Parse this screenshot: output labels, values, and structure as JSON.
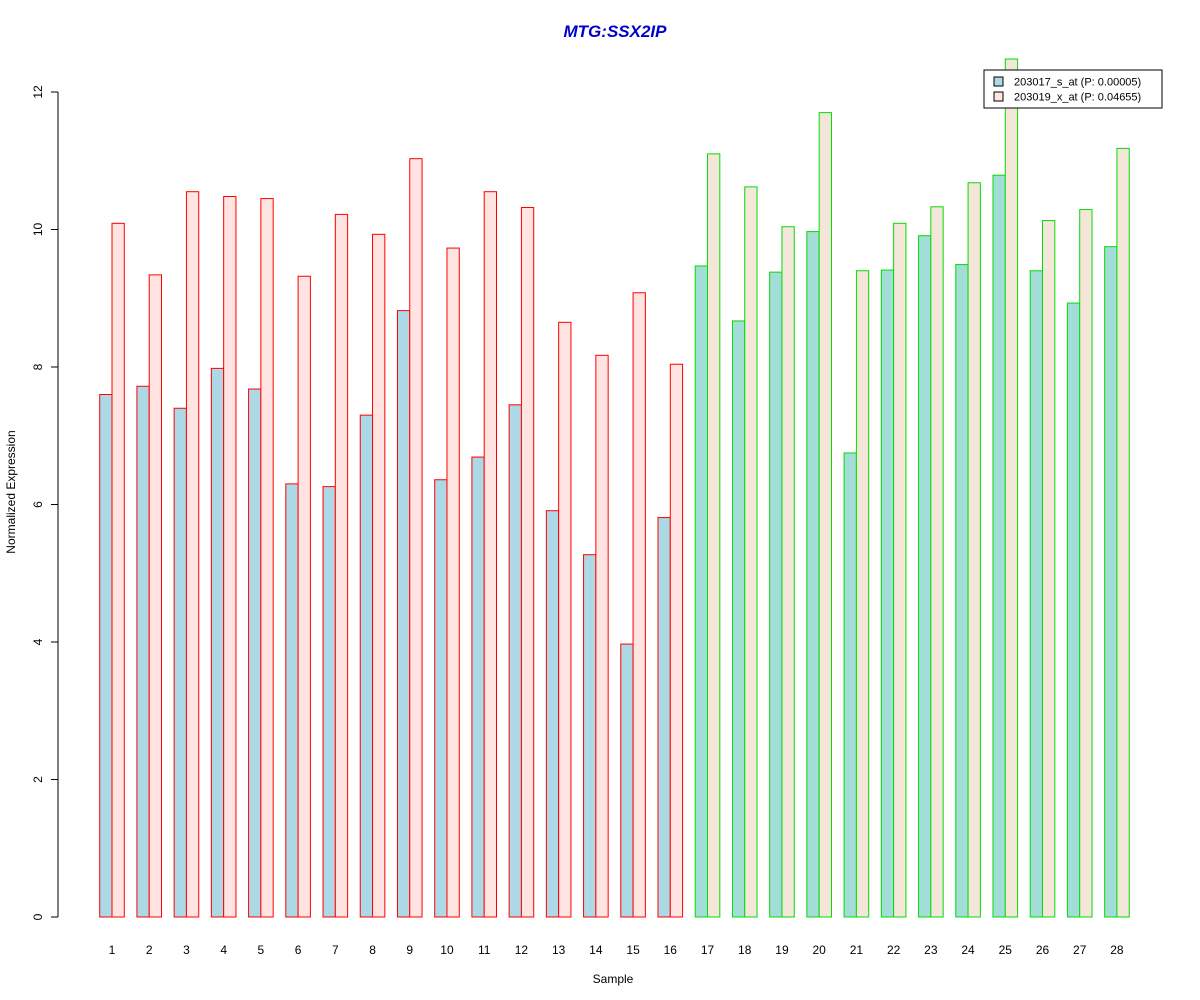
{
  "chart_data": {
    "type": "bar",
    "title": "MTG:SSX2IP",
    "xlabel": "Sample",
    "ylabel": "Normalized Expression",
    "ylim": [
      0,
      12
    ],
    "yticks": [
      0,
      2,
      4,
      6,
      8,
      10,
      12
    ],
    "grid": false,
    "legend_position": "top-right",
    "categories": [
      "1",
      "2",
      "3",
      "4",
      "5",
      "6",
      "7",
      "8",
      "9",
      "10",
      "11",
      "12",
      "13",
      "14",
      "15",
      "16",
      "17",
      "18",
      "19",
      "20",
      "21",
      "22",
      "23",
      "24",
      "25",
      "26",
      "27",
      "28"
    ],
    "groups": [
      {
        "samples": [
          1,
          16
        ],
        "border_color": "#FF0000",
        "fills": [
          "#ADD8E6",
          "#FFE4E1"
        ]
      },
      {
        "samples": [
          17,
          28
        ],
        "border_color": "#00DD00",
        "fills": [
          "#A3DDD8",
          "#F5E6DA"
        ]
      }
    ],
    "series": [
      {
        "name": "203017_s_at (P: 0.00005)",
        "legend_fill": "#ADD8E6",
        "values": [
          7.6,
          7.72,
          7.4,
          7.98,
          7.68,
          6.3,
          6.26,
          7.3,
          8.82,
          6.36,
          6.69,
          7.45,
          5.91,
          5.27,
          3.97,
          5.81,
          9.47,
          8.67,
          9.38,
          9.97,
          6.75,
          9.41,
          9.91,
          9.49,
          10.79,
          9.4,
          8.93,
          9.75
        ]
      },
      {
        "name": "203019_x_at (P: 0.04655)",
        "legend_fill": "#FFE4E1",
        "values": [
          10.09,
          9.34,
          10.55,
          10.48,
          10.45,
          9.32,
          10.22,
          9.93,
          11.03,
          9.73,
          10.55,
          10.32,
          8.65,
          8.17,
          9.08,
          8.04,
          11.1,
          10.62,
          10.04,
          11.7,
          9.4,
          10.09,
          10.33,
          10.68,
          12.48,
          10.13,
          10.29,
          11.18
        ]
      }
    ]
  }
}
